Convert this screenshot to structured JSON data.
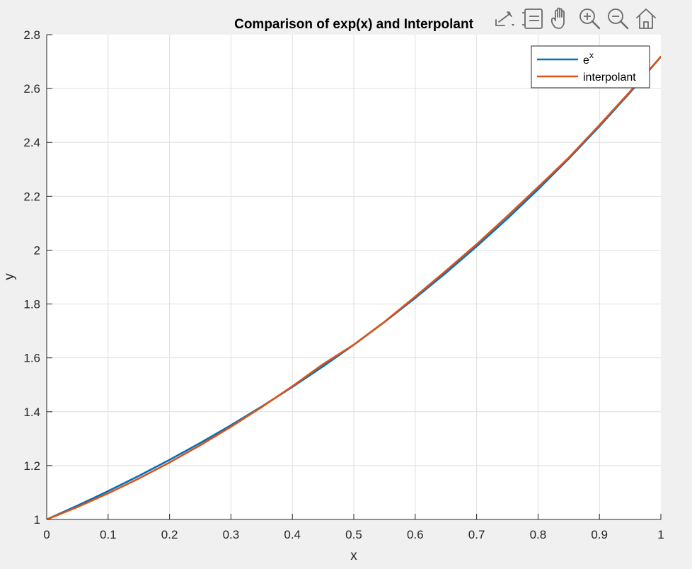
{
  "toolbar": {
    "icons": [
      "export-icon",
      "brush-icon",
      "pan-icon",
      "zoom-in-icon",
      "zoom-out-icon",
      "home-icon"
    ]
  },
  "chart_data": {
    "type": "line",
    "title": "Comparison of exp(x) and Interpolant",
    "xlabel": "x",
    "ylabel": "y",
    "xlim": [
      0,
      1
    ],
    "ylim": [
      1,
      2.8
    ],
    "xticks": [
      0,
      0.1,
      0.2,
      0.3,
      0.4,
      0.5,
      0.6,
      0.7,
      0.8,
      0.9,
      1
    ],
    "xtick_labels": [
      "0",
      "0.1",
      "0.2",
      "0.3",
      "0.4",
      "0.5",
      "0.6",
      "0.7",
      "0.8",
      "0.9",
      "1"
    ],
    "yticks": [
      1,
      1.2,
      1.4,
      1.6,
      1.8,
      2,
      2.2,
      2.4,
      2.6,
      2.8
    ],
    "ytick_labels": [
      "1",
      "1.2",
      "1.4",
      "1.6",
      "1.8",
      "2",
      "2.2",
      "2.4",
      "2.6",
      "2.8"
    ],
    "grid": true,
    "legend_position": "top-right",
    "series": [
      {
        "name": "e",
        "name_superscript": "x",
        "color": "#0072bd",
        "x": [
          0,
          0.05,
          0.1,
          0.15,
          0.2,
          0.25,
          0.3,
          0.35,
          0.4,
          0.45,
          0.5,
          0.55,
          0.6,
          0.65,
          0.7,
          0.75,
          0.8,
          0.85,
          0.9,
          0.95,
          1
        ],
        "y": [
          1,
          1.0513,
          1.1052,
          1.1618,
          1.2214,
          1.284,
          1.3499,
          1.4191,
          1.4918,
          1.5683,
          1.6487,
          1.7333,
          1.8221,
          1.9155,
          2.0138,
          2.117,
          2.2255,
          2.3396,
          2.4596,
          2.5857,
          2.7183
        ]
      },
      {
        "name": "interpolant",
        "color": "#d95319",
        "x": [
          0,
          0.05,
          0.1,
          0.15,
          0.2,
          0.25,
          0.3,
          0.35,
          0.4,
          0.45,
          0.5,
          0.55,
          0.6,
          0.65,
          0.7,
          0.75,
          0.8,
          0.85,
          0.9,
          0.95,
          1
        ],
        "y": [
          1,
          1.0462,
          1.0969,
          1.152,
          1.2116,
          1.2757,
          1.3442,
          1.4172,
          1.4946,
          1.5765,
          1.6487,
          1.7337,
          1.8273,
          1.9233,
          2.0218,
          2.1266,
          2.2338,
          2.3434,
          2.4642,
          2.5892,
          2.7183
        ]
      }
    ]
  }
}
